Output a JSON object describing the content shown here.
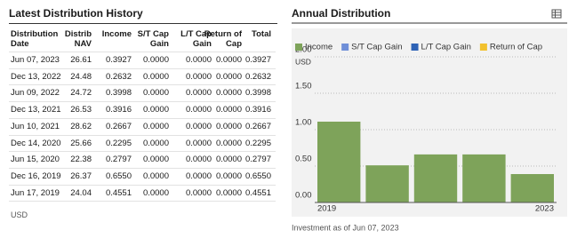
{
  "table": {
    "title": "Latest Distribution History",
    "headers": [
      "Distribution\nDate",
      "Distrib\nNAV",
      "Income",
      "S/T Cap\nGain",
      "L/T Cap\nGain",
      "Return of\nCap",
      "Total"
    ],
    "rows": [
      [
        "Jun 07, 2023",
        "26.61",
        "0.3927",
        "0.0000",
        "0.0000",
        "0.0000",
        "0.3927"
      ],
      [
        "Dec 13, 2022",
        "24.48",
        "0.2632",
        "0.0000",
        "0.0000",
        "0.0000",
        "0.2632"
      ],
      [
        "Jun 09, 2022",
        "24.72",
        "0.3998",
        "0.0000",
        "0.0000",
        "0.0000",
        "0.3998"
      ],
      [
        "Dec 13, 2021",
        "26.53",
        "0.3916",
        "0.0000",
        "0.0000",
        "0.0000",
        "0.3916"
      ],
      [
        "Jun 10, 2021",
        "28.62",
        "0.2667",
        "0.0000",
        "0.0000",
        "0.0000",
        "0.2667"
      ],
      [
        "Dec 14, 2020",
        "25.66",
        "0.2295",
        "0.0000",
        "0.0000",
        "0.0000",
        "0.2295"
      ],
      [
        "Jun 15, 2020",
        "22.38",
        "0.2797",
        "0.0000",
        "0.0000",
        "0.0000",
        "0.2797"
      ],
      [
        "Dec 16, 2019",
        "26.37",
        "0.6550",
        "0.0000",
        "0.0000",
        "0.0000",
        "0.6550"
      ],
      [
        "Jun 17, 2019",
        "24.04",
        "0.4551",
        "0.0000",
        "0.0000",
        "0.0000",
        "0.4551"
      ]
    ],
    "footnote": "USD"
  },
  "chart_data": {
    "type": "stacked_bar",
    "title": "Annual Distribution",
    "categories": [
      "2019",
      null,
      null,
      null,
      "2023"
    ],
    "series": [
      {
        "name": "Income",
        "color": "#7ea35a",
        "values": [
          1.11,
          0.51,
          0.66,
          0.66,
          0.39
        ]
      },
      {
        "name": "S/T Cap Gain",
        "color": "#6f8fd8",
        "values": [
          0,
          0,
          0,
          0,
          0
        ]
      },
      {
        "name": "L/T Cap Gain",
        "color": "#2e63b6",
        "values": [
          0,
          0,
          0,
          0,
          0
        ]
      },
      {
        "name": "Return of Cap",
        "color": "#f2c12e",
        "values": [
          0,
          0,
          0,
          0,
          0
        ]
      }
    ],
    "ylim": [
      0,
      2
    ],
    "yticks": [
      {
        "value": 0,
        "label": "0.00"
      },
      {
        "value": 0.5,
        "label": "0.50"
      },
      {
        "value": 1,
        "label": "1.00"
      },
      {
        "value": 1.5,
        "label": "1.50"
      },
      {
        "value": 2,
        "label": "2.00"
      }
    ],
    "y_unit": "USD",
    "grid": true,
    "legend": "top",
    "footnote": "Investment as of Jun 07, 2023"
  }
}
